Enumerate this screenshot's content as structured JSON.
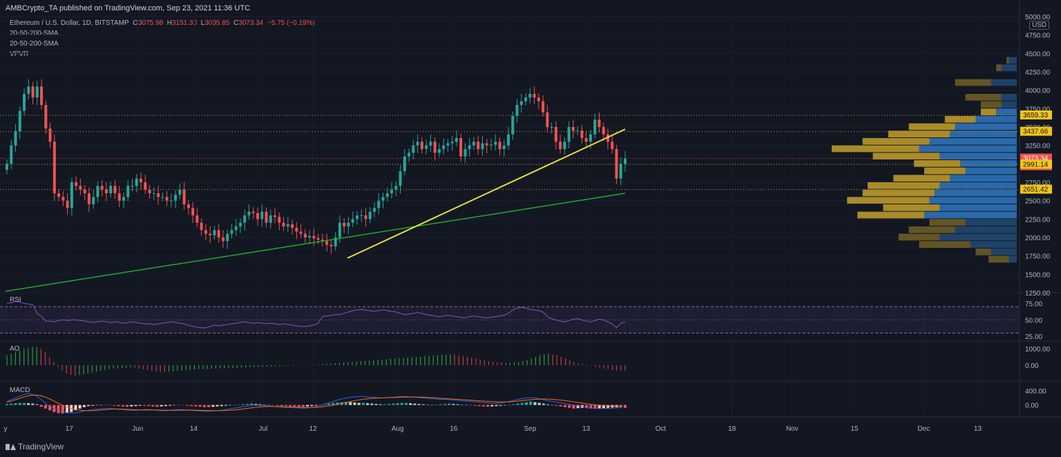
{
  "header": {
    "publisher": "AMBCrypto_TA published on TradingView.com, Sep 23, 2021 11:36 UTC",
    "symbol": "Ethereum / U.S. Dollar, 1D, BITSTAMP",
    "o_label": "O",
    "o": "3075.98",
    "h_label": "H",
    "h": "3151.30",
    "l_label": "L",
    "l": "3035.85",
    "c_label": "C",
    "c": "3073.34",
    "change": "−5.75 (−0.19%)",
    "indicators": [
      "20-50-200-SMA",
      "20-50-200-SMA",
      "VPVR"
    ],
    "currency": "USD"
  },
  "panes": {
    "rsi": "RSI",
    "ao": "AO",
    "macd": "MACD"
  },
  "footer": {
    "brand": "TradingView"
  },
  "colors": {
    "background": "#131722",
    "up": "#26a69a",
    "down": "#ef5350",
    "sma200": "#22ab2a",
    "trendline": "#e8e23a",
    "rsi_line": "#7e57c2",
    "vp_up": "#2f78c2",
    "vp_down": "#c4a02a",
    "macd_line": "#2962ff",
    "signal_line": "#ff6d00"
  },
  "chart_data": [
    {
      "type": "candlestick",
      "title": "Ethereum / U.S. Dollar, 1D, BITSTAMP",
      "x_ticks": [
        "y",
        "17",
        "Jun",
        "14",
        "Jul",
        "12",
        "Aug",
        "16",
        "Sep",
        "13",
        "Oct",
        "18",
        "Nov",
        "15",
        "Dec",
        "13"
      ],
      "y_ticks": [
        5000,
        4750,
        4500,
        4250,
        4000,
        3750,
        3500,
        3250,
        3000,
        2750,
        2500,
        2250,
        2000,
        1750,
        1500,
        1250
      ],
      "ylim": [
        1250,
        5000
      ],
      "price_labels": [
        {
          "value": "3659.33",
          "kind": "level"
        },
        {
          "value": "3437.66",
          "kind": "level"
        },
        {
          "value": "3073.34",
          "kind": "last"
        },
        {
          "value": "12:23:36",
          "kind": "countdown"
        },
        {
          "value": "2991.14",
          "kind": "level"
        },
        {
          "value": "2651.42",
          "kind": "level"
        }
      ],
      "horizontal_levels": [
        3659.33,
        3437.66,
        2991.14,
        2651.42
      ],
      "closes": [
        3000,
        3250,
        3440,
        3720,
        3950,
        4050,
        3900,
        4050,
        3800,
        3480,
        3300,
        2600,
        2550,
        2500,
        2400,
        2750,
        2700,
        2650,
        2600,
        2450,
        2550,
        2700,
        2650,
        2600,
        2700,
        2600,
        2500,
        2550,
        2700,
        2700,
        2800,
        2750,
        2650,
        2600,
        2600,
        2550,
        2550,
        2500,
        2500,
        2580,
        2650,
        2450,
        2400,
        2300,
        2200,
        2100,
        2050,
        2030,
        2100,
        2000,
        1950,
        2050,
        2100,
        2150,
        2200,
        2300,
        2350,
        2330,
        2250,
        2350,
        2200,
        2300,
        2280,
        2200,
        2150,
        2180,
        2130,
        2080,
        2050,
        2000,
        2020,
        1990,
        1970,
        1950,
        1900,
        1880,
        2000,
        2200,
        2150,
        2200,
        2250,
        2300,
        2300,
        2250,
        2350,
        2400,
        2500,
        2550,
        2600,
        2650,
        2700,
        2900,
        3100,
        3150,
        3250,
        3300,
        3200,
        3250,
        3300,
        3150,
        3200,
        3250,
        3280,
        3300,
        3350,
        3100,
        3200,
        3250,
        3300,
        3200,
        3280,
        3250,
        3260,
        3300,
        3200,
        3250,
        3400,
        3650,
        3800,
        3850,
        3900,
        3950,
        3900,
        3850,
        3700,
        3500,
        3500,
        3300,
        3200,
        3300,
        3500,
        3450,
        3450,
        3350,
        3300,
        3400,
        3600,
        3500,
        3400,
        3300,
        3200,
        2800,
        3000,
        3073
      ],
      "sma200": {
        "start": 1270,
        "end": 2600
      },
      "trendline": {
        "start": 1720,
        "end": 3470
      },
      "volume_profile": [
        {
          "price": 4400,
          "up": 3,
          "down": 1
        },
        {
          "price": 4300,
          "up": 6,
          "down": 2
        },
        {
          "price": 4100,
          "up": 10,
          "down": 14
        },
        {
          "price": 3900,
          "up": 6,
          "down": 14
        },
        {
          "price": 3800,
          "up": 6,
          "down": 8
        },
        {
          "price": 3700,
          "up": 8,
          "down": 6
        },
        {
          "price": 3600,
          "up": 16,
          "down": 12
        },
        {
          "price": 3500,
          "up": 24,
          "down": 18
        },
        {
          "price": 3400,
          "up": 26,
          "down": 24
        },
        {
          "price": 3300,
          "up": 34,
          "down": 26
        },
        {
          "price": 3200,
          "up": 38,
          "down": 34
        },
        {
          "price": 3100,
          "up": 30,
          "down": 26
        },
        {
          "price": 3000,
          "up": 22,
          "down": 18
        },
        {
          "price": 2900,
          "up": 20,
          "down": 16
        },
        {
          "price": 2800,
          "up": 26,
          "down": 22
        },
        {
          "price": 2700,
          "up": 30,
          "down": 28
        },
        {
          "price": 2600,
          "up": 32,
          "down": 28
        },
        {
          "price": 2500,
          "up": 34,
          "down": 32
        },
        {
          "price": 2400,
          "up": 30,
          "down": 22
        },
        {
          "price": 2300,
          "up": 36,
          "down": 26
        },
        {
          "price": 2200,
          "up": 20,
          "down": 14
        },
        {
          "price": 2100,
          "up": 24,
          "down": 18
        },
        {
          "price": 2000,
          "up": 30,
          "down": 16
        },
        {
          "price": 1900,
          "up": 18,
          "down": 20
        },
        {
          "price": 1800,
          "up": 10,
          "down": 6
        },
        {
          "price": 1700,
          "up": 3,
          "down": 8
        }
      ]
    },
    {
      "type": "line",
      "name": "RSI",
      "y_ticks": [
        75.0,
        50.0,
        25.0
      ],
      "ylim": [
        20,
        85
      ],
      "bands": [
        30,
        70
      ],
      "values": [
        75,
        76,
        78,
        77,
        75,
        74,
        73,
        60,
        55,
        48,
        48,
        47,
        49,
        50,
        49,
        50,
        50,
        49,
        48,
        47,
        46,
        47,
        48,
        47,
        46,
        47,
        46,
        45,
        46,
        47,
        46,
        45,
        44,
        44,
        43,
        44,
        45,
        46,
        47,
        46,
        45,
        44,
        42,
        40,
        39,
        38,
        38,
        40,
        42,
        41,
        42,
        43,
        44,
        45,
        46,
        47,
        46,
        45,
        46,
        45,
        44,
        45,
        44,
        43,
        44,
        43,
        42,
        41,
        40,
        40,
        41,
        42,
        45,
        55,
        56,
        57,
        58,
        58,
        60,
        62,
        64,
        65,
        66,
        65,
        64,
        63,
        64,
        65,
        64,
        63,
        62,
        60,
        58,
        59,
        60,
        61,
        60,
        58,
        57,
        56,
        55,
        56,
        57,
        56,
        55,
        54,
        53,
        55,
        56,
        55,
        54,
        53,
        54,
        55,
        56,
        57,
        60,
        65,
        68,
        69,
        68,
        66,
        65,
        64,
        62,
        55,
        52,
        50,
        48,
        47,
        49,
        51,
        52,
        50,
        48,
        47,
        49,
        51,
        50,
        47,
        44,
        38,
        45,
        47
      ]
    },
    {
      "type": "bar",
      "name": "AO",
      "y_ticks": [
        1000.0,
        0.0
      ],
      "ylim": [
        -800,
        1300
      ],
      "values": [
        600,
        700,
        800,
        900,
        1000,
        1050,
        1100,
        1100,
        1000,
        800,
        500,
        200,
        -100,
        -300,
        -500,
        -600,
        -650,
        -600,
        -550,
        -500,
        -450,
        -400,
        -350,
        -300,
        -250,
        -200,
        -200,
        -180,
        -160,
        -150,
        -170,
        -200,
        -250,
        -300,
        -350,
        -380,
        -400,
        -420,
        -400,
        -380,
        -350,
        -330,
        -300,
        -280,
        -260,
        -250,
        -240,
        -230,
        -220,
        -210,
        -200,
        -190,
        -180,
        -170,
        -160,
        -150,
        -140,
        -130,
        -120,
        -110,
        -100,
        -90,
        -80,
        -70,
        -60,
        -50,
        -40,
        -30,
        -20,
        -10,
        0,
        10,
        20,
        40,
        60,
        80,
        100,
        120,
        140,
        160,
        180,
        200,
        220,
        240,
        260,
        280,
        300,
        320,
        340,
        360,
        380,
        400,
        420,
        440,
        460,
        480,
        500,
        520,
        540,
        560,
        580,
        600,
        620,
        640,
        660,
        650,
        600,
        550,
        500,
        450,
        400,
        350,
        300,
        250,
        200,
        180,
        160,
        140,
        160,
        180,
        200,
        250,
        300,
        400,
        500,
        600,
        650,
        700,
        650,
        600,
        500,
        400,
        300,
        200,
        100,
        50,
        0,
        -50,
        -100,
        -150,
        -200,
        -250,
        -300,
        -320,
        -340,
        -360
      ]
    },
    {
      "type": "bar",
      "name": "MACD",
      "y_ticks": [
        400.0,
        0.0
      ],
      "ylim": [
        -300,
        600
      ],
      "histogram": [
        30,
        40,
        50,
        60,
        60,
        50,
        40,
        20,
        -50,
        -100,
        -150,
        -200,
        -230,
        -240,
        -220,
        -200,
        -150,
        -100,
        -60,
        -30,
        -20,
        -10,
        -5,
        0,
        -10,
        -20,
        -30,
        -40,
        -50,
        -40,
        -30,
        -20,
        -20,
        -30,
        -40,
        -50,
        -40,
        -30,
        -20,
        -10,
        0,
        -10,
        -20,
        -30,
        -40,
        -50,
        -60,
        -60,
        -50,
        -40,
        -30,
        -20,
        -10,
        0,
        10,
        20,
        30,
        40,
        30,
        20,
        10,
        0,
        -10,
        -20,
        -30,
        -30,
        -40,
        -40,
        -50,
        -50,
        -40,
        -30,
        -20,
        0,
        20,
        40,
        60,
        70,
        80,
        90,
        80,
        70,
        60,
        60,
        50,
        40,
        30,
        20,
        20,
        30,
        40,
        50,
        60,
        60,
        50,
        40,
        30,
        20,
        10,
        0,
        10,
        20,
        30,
        40,
        30,
        20,
        10,
        0,
        -10,
        -20,
        -30,
        -40,
        -50,
        -40,
        -30,
        -20,
        -10,
        0,
        20,
        40,
        60,
        80,
        100,
        80,
        60,
        40,
        20,
        0,
        -20,
        -40,
        -60,
        -80,
        -100,
        -90,
        -80,
        -90,
        -100,
        -110,
        -100,
        -90,
        -80,
        -70,
        -60,
        -70,
        -80
      ],
      "macd": [
        100,
        150,
        200,
        250,
        300,
        320,
        300,
        250,
        150,
        50,
        -50,
        -100,
        -150,
        -200,
        -220,
        -230,
        -220,
        -200,
        -170,
        -150,
        -130,
        -120,
        -110,
        -100,
        -100,
        -110,
        -120,
        -130,
        -140,
        -150,
        -150,
        -140,
        -130,
        -130,
        -140,
        -150,
        -160,
        -160,
        -150,
        -140,
        -130,
        -130,
        -140,
        -150,
        -160,
        -170,
        -180,
        -180,
        -170,
        -160,
        -150,
        -130,
        -110,
        -90,
        -70,
        -50,
        -30,
        -10,
        0,
        -10,
        -20,
        -30,
        -40,
        -50,
        -60,
        -70,
        -70,
        -80,
        -80,
        -90,
        -80,
        -70,
        -50,
        -20,
        20,
        60,
        100,
        140,
        170,
        200,
        220,
        230,
        240,
        240,
        230,
        220,
        210,
        200,
        200,
        210,
        220,
        230,
        240,
        240,
        230,
        220,
        210,
        200,
        190,
        180,
        170,
        160,
        160,
        150,
        140,
        130,
        120,
        110,
        100,
        90,
        80,
        70,
        60,
        50,
        50,
        60,
        80,
        100,
        130,
        160,
        180,
        200,
        210,
        200,
        180,
        150,
        120,
        100,
        80,
        60,
        40,
        20,
        0,
        -20,
        -40,
        -60,
        -80,
        -90,
        -100,
        -100,
        -100,
        -90,
        -80,
        -80
      ],
      "signal": [
        80,
        110,
        150,
        190,
        230,
        260,
        280,
        280,
        260,
        220,
        170,
        110,
        50,
        -10,
        -60,
        -100,
        -130,
        -150,
        -160,
        -160,
        -160,
        -150,
        -140,
        -130,
        -120,
        -115,
        -115,
        -120,
        -125,
        -130,
        -135,
        -138,
        -140,
        -140,
        -140,
        -142,
        -145,
        -148,
        -150,
        -150,
        -148,
        -146,
        -145,
        -146,
        -148,
        -150,
        -154,
        -158,
        -160,
        -160,
        -158,
        -154,
        -148,
        -140,
        -128,
        -114,
        -98,
        -80,
        -64,
        -52,
        -45,
        -42,
        -42,
        -44,
        -48,
        -52,
        -56,
        -60,
        -64,
        -68,
        -70,
        -70,
        -66,
        -58,
        -44,
        -26,
        -4,
        20,
        46,
        72,
        98,
        122,
        144,
        162,
        176,
        188,
        196,
        200,
        204,
        208,
        212,
        216,
        220,
        224,
        226,
        226,
        224,
        220,
        214,
        208,
        200,
        192,
        184,
        176,
        168,
        160,
        152,
        144,
        136,
        128,
        120,
        112,
        104,
        96,
        90,
        86,
        86,
        90,
        98,
        110,
        124,
        138,
        150,
        160,
        166,
        168,
        166,
        160,
        150,
        138,
        124,
        108,
        90,
        72,
        54,
        36,
        20,
        6,
        -6,
        -16,
        -22,
        -26,
        -28,
        -28
      ]
    }
  ]
}
